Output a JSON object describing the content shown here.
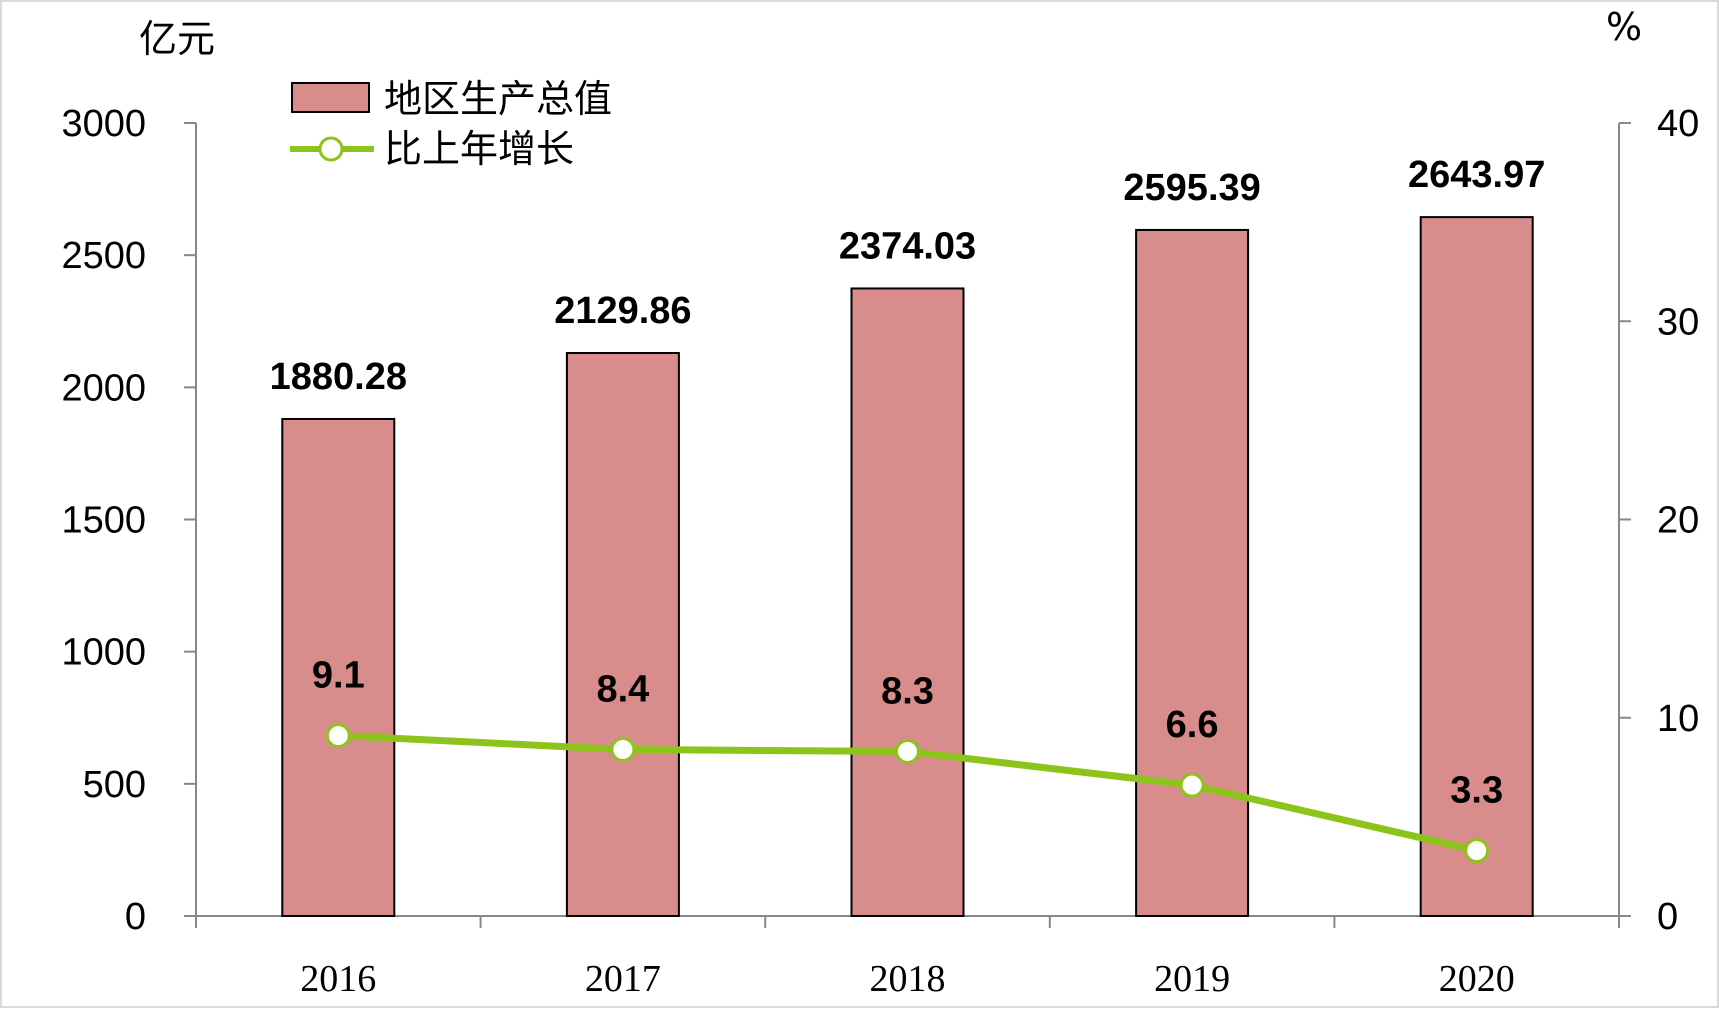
{
  "chart_data": {
    "type": "bar",
    "categories": [
      "2016",
      "2017",
      "2018",
      "2019",
      "2020"
    ],
    "series": [
      {
        "name": "地区生产总值",
        "type": "bar",
        "axis": "left",
        "values": [
          1880.28,
          2129.86,
          2374.03,
          2595.39,
          2643.97
        ],
        "labels": [
          "1880.28",
          "2129.86",
          "2374.03",
          "2595.39",
          "2643.97"
        ],
        "color": "#d88c8c"
      },
      {
        "name": "比上年增长",
        "type": "line",
        "axis": "right",
        "values": [
          9.1,
          8.4,
          8.3,
          6.6,
          3.3
        ],
        "labels": [
          "9.1",
          "8.4",
          "8.3",
          "6.6",
          "3.3"
        ],
        "color": "#8cc41c"
      }
    ],
    "y_left": {
      "unit": "亿元",
      "range": [
        0,
        3000
      ],
      "ticks": [
        "0",
        "500",
        "1000",
        "1500",
        "2000",
        "2500",
        "3000"
      ]
    },
    "y_right": {
      "unit": "%",
      "range": [
        0,
        40
      ],
      "ticks": [
        "0",
        "10",
        "20",
        "30",
        "40"
      ]
    },
    "grid": false,
    "legend_position": "top-left"
  }
}
